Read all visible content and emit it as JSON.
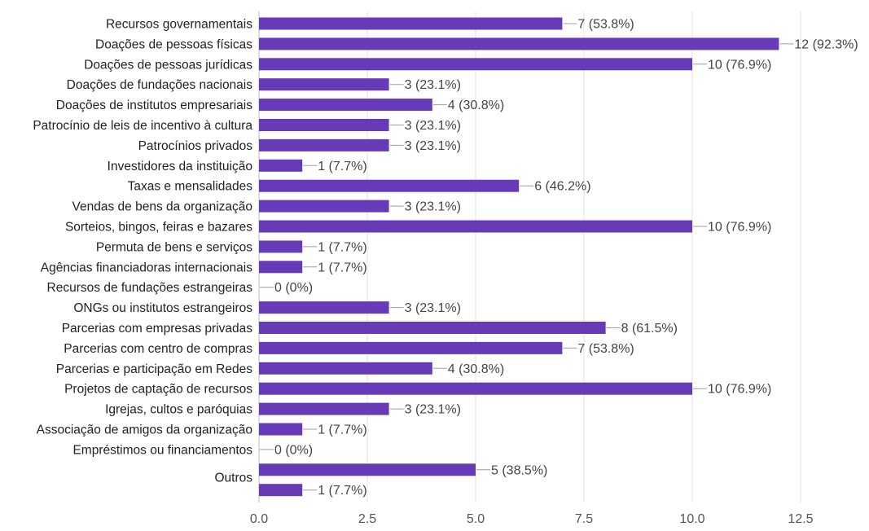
{
  "chart_data": {
    "type": "bar",
    "orientation": "horizontal",
    "title": "",
    "xlabel": "",
    "ylabel": "",
    "xlim": [
      0,
      12.5
    ],
    "x_ticks": [
      0,
      2.5,
      5,
      7.5,
      10,
      12.5
    ],
    "x_tick_labels": [
      "0.0",
      "2.5",
      "5.0",
      "7.5",
      "10.0",
      "12.5"
    ],
    "grid": "vertical gridlines on",
    "bar_color": "#673ab7",
    "gridline_color": "#e0e0e0",
    "categories": [
      "Recursos governamentais",
      "Doações de pessoas físicas",
      "Doações de pessoas jurídicas",
      "Doações de fundações nacionais",
      "Doações de institutos empresariais",
      "Patrocínio de leis de incentivo à cultura",
      "Patrocínios privados",
      "Investidores da instituição",
      "Taxas e mensalidades",
      "Vendas de bens  da organização",
      "Sorteios, bingos, feiras e bazares",
      "Permuta de bens e serviços",
      "Agências financiadoras internacionais",
      "Recursos de fundações estrangeiras",
      "ONGs ou institutos estrangeiros",
      "Parcerias com empresas privadas",
      "Parcerias com centro de compras",
      "Parcerias e participação em Redes",
      "Projetos de captação de recursos",
      "Igrejas, cultos e paróquias",
      "Associação de amigos da organização",
      "Empréstimos ou financiamentos",
      "Outros",
      ""
    ],
    "values": [
      7,
      12,
      10,
      3,
      4,
      3,
      3,
      1,
      6,
      3,
      10,
      1,
      1,
      0,
      3,
      8,
      7,
      4,
      10,
      3,
      1,
      0,
      5,
      1
    ],
    "value_labels": [
      "7 (53.8%)",
      "12 (92.3%)",
      "10 (76.9%)",
      "3 (23.1%)",
      "4 (30.8%)",
      "3 (23.1%)",
      "3 (23.1%)",
      "1 (7.7%)",
      "6 (46.2%)",
      "3 (23.1%)",
      "10 (76.9%)",
      "1 (7.7%)",
      "1 (7.7%)",
      "0 (0%)",
      "3 (23.1%)",
      "8 (61.5%)",
      "7 (53.8%)",
      "4 (30.8%)",
      "10 (76.9%)",
      "3 (23.1%)",
      "1 (7.7%)",
      "0 (0%)",
      "5 (38.5%)",
      "1 (7.7%)"
    ]
  }
}
